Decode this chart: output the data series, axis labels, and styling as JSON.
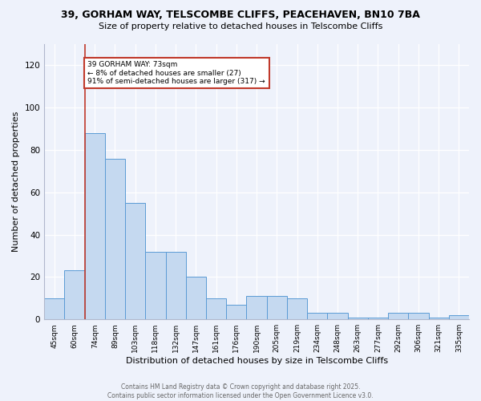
{
  "title_line1": "39, GORHAM WAY, TELSCOMBE CLIFFS, PEACEHAVEN, BN10 7BA",
  "title_line2": "Size of property relative to detached houses in Telscombe Cliffs",
  "xlabel": "Distribution of detached houses by size in Telscombe Cliffs",
  "ylabel": "Number of detached properties",
  "categories": [
    "45sqm",
    "60sqm",
    "74sqm",
    "89sqm",
    "103sqm",
    "118sqm",
    "132sqm",
    "147sqm",
    "161sqm",
    "176sqm",
    "190sqm",
    "205sqm",
    "219sqm",
    "234sqm",
    "248sqm",
    "263sqm",
    "277sqm",
    "292sqm",
    "306sqm",
    "321sqm",
    "335sqm"
  ],
  "values": [
    10,
    23,
    88,
    76,
    55,
    32,
    32,
    20,
    10,
    7,
    11,
    11,
    10,
    3,
    3,
    1,
    1,
    3,
    3,
    1,
    2
  ],
  "bar_color": "#c5d9f0",
  "bar_edge_color": "#5b9bd5",
  "vline_color": "#c0392b",
  "annotation_title": "39 GORHAM WAY: 73sqm",
  "annotation_line2": "← 8% of detached houses are smaller (27)",
  "annotation_line3": "91% of semi-detached houses are larger (317) →",
  "annotation_box_edgecolor": "#c0392b",
  "ylim_max": 130,
  "yticks": [
    0,
    20,
    40,
    60,
    80,
    100,
    120
  ],
  "background_color": "#eef2fb",
  "grid_color": "#ffffff",
  "footer_line1": "Contains HM Land Registry data © Crown copyright and database right 2025.",
  "footer_line2": "Contains public sector information licensed under the Open Government Licence v3.0."
}
